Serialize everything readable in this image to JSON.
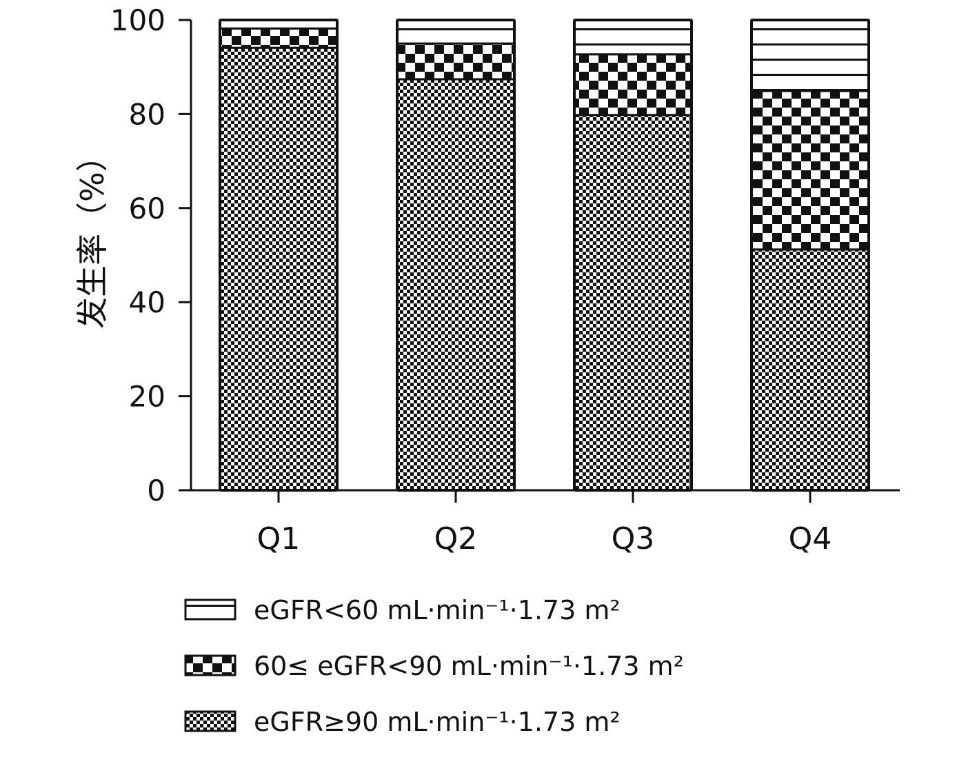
{
  "chart_data": {
    "type": "bar",
    "stacked": true,
    "title": "",
    "xlabel": "",
    "ylabel": "发生率（%）",
    "ylim": [
      0,
      100
    ],
    "yticks": [
      0,
      20,
      40,
      60,
      80,
      100
    ],
    "categories": [
      "Q1",
      "Q2",
      "Q3",
      "Q4"
    ],
    "series": [
      {
        "name": "eGFR≥90 mL·min⁻¹·1.73 m²",
        "pattern": "fine-checker",
        "values": [
          94.1,
          87.4,
          79.8,
          51.2
        ]
      },
      {
        "name": "60≤ eGFR<90 mL·min⁻¹·1.73 m²",
        "pattern": "coarse-checker",
        "values": [
          4.1,
          7.6,
          12.9,
          33.7
        ]
      },
      {
        "name": "eGFR<60 mL·min⁻¹·1.73 m²",
        "pattern": "horizontal-lines",
        "values": [
          1.8,
          5.0,
          7.3,
          15.1
        ]
      }
    ],
    "legend_order": [
      2,
      1,
      0
    ],
    "legend_position": "bottom",
    "grid": false
  }
}
